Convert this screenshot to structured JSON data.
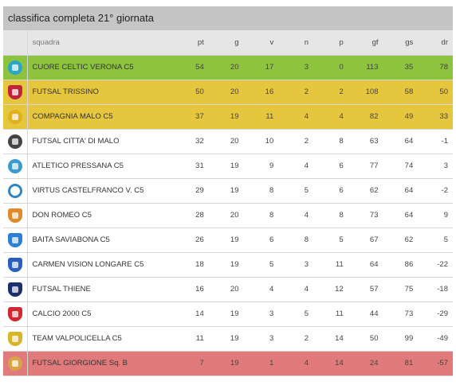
{
  "title": "classifica completa 21° giornata",
  "columns": {
    "squadra": "squadra",
    "pt": "pt",
    "g": "g",
    "v": "v",
    "n": "n",
    "p": "p",
    "gf": "gf",
    "gs": "gs",
    "dr": "dr"
  },
  "colors": {
    "promotion": "#8dc33f",
    "playoff": "#e6c63c",
    "relegation": "#e17b7b"
  },
  "rows": [
    {
      "squadra": "CUORE CELTIC VERONA C5",
      "pt": "54",
      "g": "20",
      "v": "17",
      "n": "3",
      "p": "0",
      "gf": "113",
      "gs": "35",
      "dr": "78",
      "zone": "promotion",
      "logo_icon": "cuore-celtic-logo-icon",
      "logo_color": "#2aa6c9",
      "logo_shape": "circle"
    },
    {
      "squadra": "FUTSAL TRISSINO",
      "pt": "50",
      "g": "20",
      "v": "16",
      "n": "2",
      "p": "2",
      "gf": "108",
      "gs": "58",
      "dr": "50",
      "zone": "playoff",
      "logo_icon": "futsal-trissino-logo-icon",
      "logo_color": "#c0243b",
      "logo_shape": "shield"
    },
    {
      "squadra": "COMPAGNIA MALO C5",
      "pt": "37",
      "g": "19",
      "v": "11",
      "n": "4",
      "p": "4",
      "gf": "82",
      "gs": "49",
      "dr": "33",
      "zone": "playoff",
      "logo_icon": "compagnia-malo-logo-icon",
      "logo_color": "#e0b11d",
      "logo_shape": "circle"
    },
    {
      "squadra": "FUTSAL CITTA' DI MALO",
      "pt": "32",
      "g": "20",
      "v": "10",
      "n": "2",
      "p": "8",
      "gf": "63",
      "gs": "64",
      "dr": "-1",
      "zone": "none",
      "logo_icon": "futsal-citta-di-malo-logo-icon",
      "logo_color": "#444444",
      "logo_shape": "circle"
    },
    {
      "squadra": "ATLETICO PRESSANA C5",
      "pt": "31",
      "g": "19",
      "v": "9",
      "n": "4",
      "p": "6",
      "gf": "77",
      "gs": "74",
      "dr": "3",
      "zone": "none",
      "logo_icon": "atletico-pressana-logo-icon",
      "logo_color": "#3a9bd0",
      "logo_shape": "circle"
    },
    {
      "squadra": "VIRTUS CASTELFRANCO V. C5",
      "pt": "29",
      "g": "19",
      "v": "8",
      "n": "5",
      "p": "6",
      "gf": "62",
      "gs": "64",
      "dr": "-2",
      "zone": "none",
      "logo_icon": "virtus-castelfranco-logo-icon",
      "logo_color": "#2f86c7",
      "logo_shape": "ring"
    },
    {
      "squadra": "DON ROMEO C5",
      "pt": "28",
      "g": "20",
      "v": "8",
      "n": "4",
      "p": "8",
      "gf": "73",
      "gs": "64",
      "dr": "9",
      "zone": "none",
      "logo_icon": "don-romeo-logo-icon",
      "logo_color": "#e08a2c",
      "logo_shape": "shield"
    },
    {
      "squadra": "BAITA SAVIABONA C5",
      "pt": "26",
      "g": "19",
      "v": "6",
      "n": "8",
      "p": "5",
      "gf": "67",
      "gs": "62",
      "dr": "5",
      "zone": "none",
      "logo_icon": "baita-saviabona-logo-icon",
      "logo_color": "#2b7fd4",
      "logo_shape": "shield"
    },
    {
      "squadra": "CARMEN VISION LONGARE C5",
      "pt": "18",
      "g": "19",
      "v": "5",
      "n": "3",
      "p": "11",
      "gf": "64",
      "gs": "86",
      "dr": "-22",
      "zone": "none",
      "logo_icon": "carmen-vision-longare-logo-icon",
      "logo_color": "#2b5fbf",
      "logo_shape": "shield"
    },
    {
      "squadra": "FUTSAL THIENE",
      "pt": "16",
      "g": "20",
      "v": "4",
      "n": "4",
      "p": "12",
      "gf": "57",
      "gs": "75",
      "dr": "-18",
      "zone": "none",
      "logo_icon": "futsal-thiene-logo-icon",
      "logo_color": "#1c2f6b",
      "logo_shape": "shield"
    },
    {
      "squadra": "CALCIO 2000 C5",
      "pt": "14",
      "g": "19",
      "v": "3",
      "n": "5",
      "p": "11",
      "gf": "44",
      "gs": "73",
      "dr": "-29",
      "zone": "none",
      "logo_icon": "calcio-2000-logo-icon",
      "logo_color": "#d4262e",
      "logo_shape": "shield"
    },
    {
      "squadra": "TEAM VALPOLICELLA C5",
      "pt": "11",
      "g": "19",
      "v": "3",
      "n": "2",
      "p": "14",
      "gf": "50",
      "gs": "99",
      "dr": "-49",
      "zone": "none",
      "logo_icon": "team-valpolicella-logo-icon",
      "logo_color": "#d9b52a",
      "logo_shape": "shield"
    },
    {
      "squadra": "FUTSAL GIORGIONE Sq. B",
      "pt": "7",
      "g": "19",
      "v": "1",
      "n": "4",
      "p": "14",
      "gf": "24",
      "gs": "81",
      "dr": "-57",
      "zone": "relegation",
      "logo_icon": "futsal-giorgione-logo-icon",
      "logo_color": "#d9a441",
      "logo_shape": "circle"
    }
  ]
}
